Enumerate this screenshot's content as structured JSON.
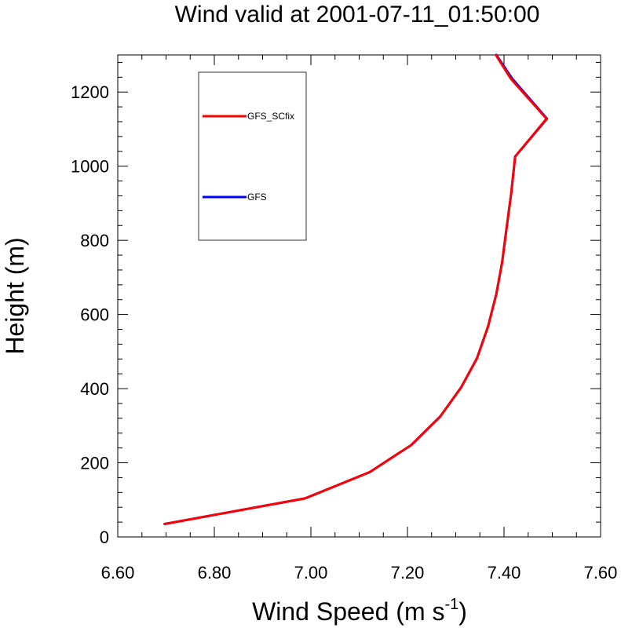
{
  "chart_data": {
    "type": "line",
    "title": "Wind valid at 2001-07-11_01:50:00",
    "xlabel": "Wind Speed (m s",
    "xlabel_superscript": "-1",
    "xlabel_close": ")",
    "ylabel": "Height (m)",
    "xlim": [
      6.6,
      7.6
    ],
    "ylim": [
      0,
      1300
    ],
    "xticks": [
      6.6,
      6.8,
      7.0,
      7.2,
      7.4,
      7.6
    ],
    "xtick_labels": [
      "6.60",
      "6.80",
      "7.00",
      "7.20",
      "7.40",
      "7.60"
    ],
    "yticks": [
      0,
      200,
      400,
      600,
      800,
      1000,
      1200
    ],
    "ytick_labels": [
      "0",
      "200",
      "400",
      "600",
      "800",
      "1000",
      "1200"
    ],
    "grid": false,
    "legend_position": "top-left",
    "series": [
      {
        "name": "GFS",
        "color": "#0000ff",
        "points": [
          [
            6.697,
            35
          ],
          [
            6.988,
            104
          ],
          [
            7.122,
            175
          ],
          [
            7.208,
            248
          ],
          [
            7.268,
            325
          ],
          [
            7.311,
            403
          ],
          [
            7.344,
            482
          ],
          [
            7.367,
            568
          ],
          [
            7.384,
            655
          ],
          [
            7.396,
            740
          ],
          [
            7.405,
            830
          ],
          [
            7.415,
            928
          ],
          [
            7.423,
            1026
          ],
          [
            7.489,
            1128
          ],
          [
            7.417,
            1236
          ],
          [
            7.384,
            1300
          ]
        ]
      },
      {
        "name": "GFS_SCfix",
        "color": "#ff0000",
        "points": [
          [
            6.697,
            35
          ],
          [
            6.988,
            104
          ],
          [
            7.122,
            175
          ],
          [
            7.208,
            248
          ],
          [
            7.268,
            325
          ],
          [
            7.311,
            403
          ],
          [
            7.344,
            482
          ],
          [
            7.367,
            568
          ],
          [
            7.384,
            655
          ],
          [
            7.396,
            740
          ],
          [
            7.405,
            830
          ],
          [
            7.415,
            928
          ],
          [
            7.423,
            1026
          ],
          [
            7.488,
            1128
          ],
          [
            7.414,
            1236
          ],
          [
            7.383,
            1300
          ]
        ]
      }
    ],
    "legend": [
      {
        "name": "GFS_SCfix",
        "color": "#ff0000"
      },
      {
        "name": "GFS",
        "color": "#0000ff"
      }
    ]
  }
}
